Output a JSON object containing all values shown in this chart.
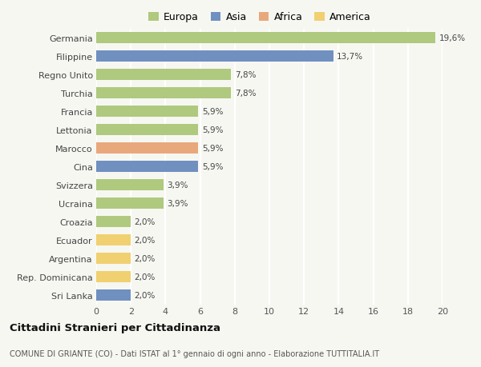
{
  "countries": [
    "Germania",
    "Filippine",
    "Regno Unito",
    "Turchia",
    "Francia",
    "Lettonia",
    "Marocco",
    "Cina",
    "Svizzera",
    "Ucraina",
    "Croazia",
    "Ecuador",
    "Argentina",
    "Rep. Dominicana",
    "Sri Lanka"
  ],
  "values": [
    19.6,
    13.7,
    7.8,
    7.8,
    5.9,
    5.9,
    5.9,
    5.9,
    3.9,
    3.9,
    2.0,
    2.0,
    2.0,
    2.0,
    2.0
  ],
  "labels": [
    "19,6%",
    "13,7%",
    "7,8%",
    "7,8%",
    "5,9%",
    "5,9%",
    "5,9%",
    "5,9%",
    "3,9%",
    "3,9%",
    "2,0%",
    "2,0%",
    "2,0%",
    "2,0%",
    "2,0%"
  ],
  "continent": [
    "Europa",
    "Asia",
    "Europa",
    "Europa",
    "Europa",
    "Europa",
    "Africa",
    "Asia",
    "Europa",
    "Europa",
    "Europa",
    "America",
    "America",
    "America",
    "Asia"
  ],
  "colors": {
    "Europa": "#afc97e",
    "Asia": "#7090c0",
    "Africa": "#e8a87c",
    "America": "#f0d070"
  },
  "legend_order": [
    "Europa",
    "Asia",
    "Africa",
    "America"
  ],
  "xlim": [
    0,
    20
  ],
  "xticks": [
    0,
    2,
    4,
    6,
    8,
    10,
    12,
    14,
    16,
    18,
    20
  ],
  "title": "Cittadini Stranieri per Cittadinanza",
  "subtitle": "COMUNE DI GRIANTE (CO) - Dati ISTAT al 1° gennaio di ogni anno - Elaborazione TUTTITALIA.IT",
  "bg_color": "#f7f7f2",
  "grid_color": "#ffffff",
  "bar_height": 0.6
}
